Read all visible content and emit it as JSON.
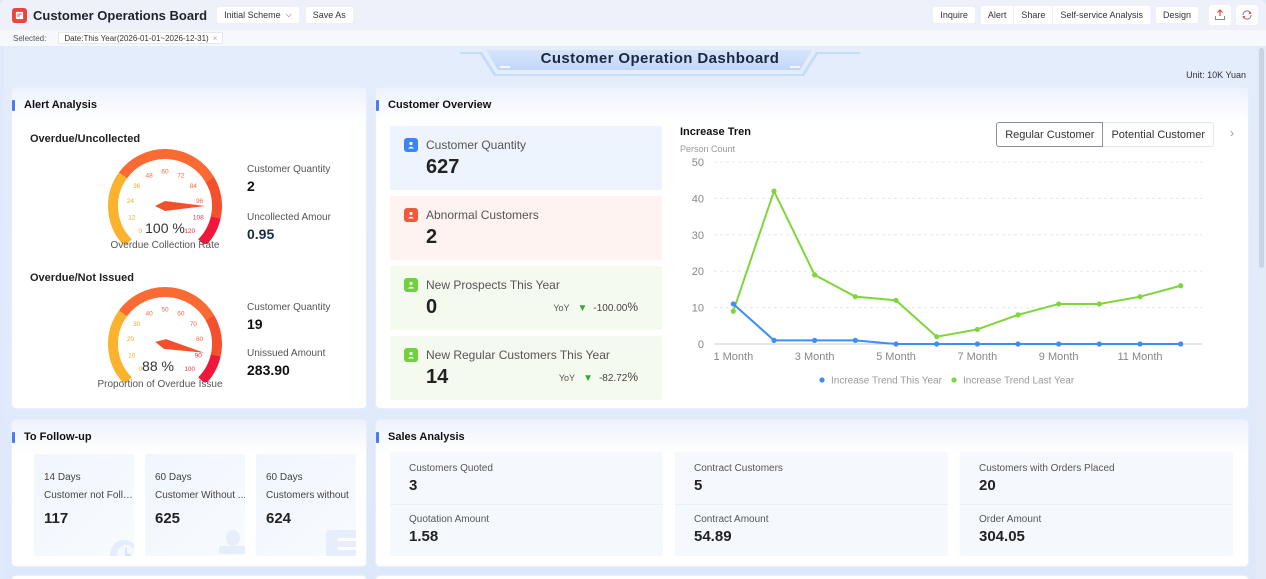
{
  "app": {
    "title": "Customer Operations Board",
    "scheme_label": "Initial Scheme",
    "save_as_label": "Save As",
    "actions": {
      "inquire": "Inquire",
      "alert": "Alert",
      "share": "Share",
      "self_service": "Self-service Analysis",
      "design": "Design"
    },
    "icons": {
      "export": "export-icon",
      "refresh": "refresh-icon"
    }
  },
  "filters": {
    "label": "Selected:",
    "chips": [
      {
        "text": "Date:This Year(2026-01-01~2026-12-31)",
        "close": "×"
      }
    ]
  },
  "dashboard": {
    "title": "Customer Operation Dashboard",
    "unit": "Unit: 10K Yuan"
  },
  "alert_analysis": {
    "title": "Alert Analysis",
    "uncollected": {
      "title": "Overdue/Uncollected",
      "gauge_value": "100 %",
      "gauge_caption": "Overdue Collection Rate",
      "gauge_ticks": [
        "0",
        "12",
        "24",
        "36",
        "48",
        "60",
        "72",
        "84",
        "96",
        "108",
        "120"
      ],
      "gauge_max": 120,
      "gauge_pointer": 100,
      "customer_qty_label": "Customer Quantity",
      "customer_qty": "2",
      "amount_label": "Uncollected Amour",
      "amount": "0.95"
    },
    "not_issued": {
      "title": "Overdue/Not Issued",
      "gauge_value": "88 %",
      "gauge_caption": "Proportion of Overdue Issue",
      "gauge_ticks": [
        "0",
        "10",
        "20",
        "30",
        "40",
        "50",
        "60",
        "70",
        "80",
        "90",
        "100"
      ],
      "gauge_max": 100,
      "gauge_pointer": 88,
      "customer_qty_label": "Customer Quantity",
      "customer_qty": "19",
      "amount_label": "Unissued Amount",
      "amount": "283.90"
    }
  },
  "customer_overview": {
    "title": "Customer Overview",
    "cards": [
      {
        "label": "Customer Quantity",
        "value": "627",
        "color": "#3b86f5",
        "bg": "#eef4fd"
      },
      {
        "label": "Abnormal Customers",
        "value": "2",
        "color": "#f05a3a",
        "bg": "#fef3f1"
      },
      {
        "label": "New Prospects This Year",
        "value": "0",
        "color": "#6fd13b",
        "bg": "#f5faee",
        "yoy_label": "YoY",
        "yoy_value": "-100.00",
        "yoy_unit": "%"
      },
      {
        "label": "New Regular Customers This Year",
        "value": "14",
        "color": "#6fd13b",
        "bg": "#f5faee",
        "yoy_label": "YoY",
        "yoy_value": "-82.72",
        "yoy_unit": "%"
      }
    ],
    "toggle": {
      "regular": "Regular Customer",
      "potential": "Potential Customer",
      "next": "›"
    }
  },
  "chart_data": {
    "type": "line",
    "title": "Increase Tren",
    "ylabel": "Person Count",
    "xlabel": "",
    "x": [
      "1 Month",
      "2 Month",
      "3 Month",
      "4 Month",
      "5 Month",
      "6 Month",
      "7 Month",
      "8 Month",
      "9 Month",
      "10 Month",
      "11 Month",
      "12 Month"
    ],
    "x_tick_labels": [
      "1 Month",
      "3 Month",
      "5 Month",
      "7 Month",
      "9 Month",
      "11 Month"
    ],
    "ylim": [
      0,
      50
    ],
    "y_ticks": [
      0,
      10,
      20,
      30,
      40,
      50
    ],
    "grid": true,
    "legend_position": "bottom-center",
    "series": [
      {
        "name": "Increase Trend This Year",
        "color": "#3d8ef7",
        "values": [
          11,
          1,
          1,
          1,
          0,
          0,
          0,
          0,
          0,
          0,
          0,
          0
        ]
      },
      {
        "name": "Increase Trend Last Year",
        "color": "#7ed63a",
        "values": [
          9,
          42,
          19,
          13,
          12,
          2,
          4,
          8,
          11,
          11,
          13,
          16
        ]
      }
    ]
  },
  "follow_up": {
    "title": "To Follow-up",
    "cards": [
      {
        "days": "14 Days",
        "label": "Customer not Follo...",
        "value": "117",
        "icon": "clock-icon"
      },
      {
        "days": "60 Days",
        "label": "Customer Without ...",
        "value": "625",
        "icon": "stamp-icon"
      },
      {
        "days": "60 Days",
        "label": "Customers without",
        "value": "624",
        "icon": "list-icon"
      }
    ]
  },
  "sales_analysis": {
    "title": "Sales Analysis",
    "cards": [
      {
        "label_top": "Customers Quoted",
        "value_top": "3",
        "label_bottom": "Quotation Amount",
        "value_bottom": "1.58"
      },
      {
        "label_top": "Contract Customers",
        "value_top": "5",
        "label_bottom": "Contract Amount",
        "value_bottom": "54.89"
      },
      {
        "label_top": "Customers with Orders Placed",
        "value_top": "20",
        "label_bottom": "Order Amount",
        "value_bottom": "304.05"
      }
    ]
  }
}
